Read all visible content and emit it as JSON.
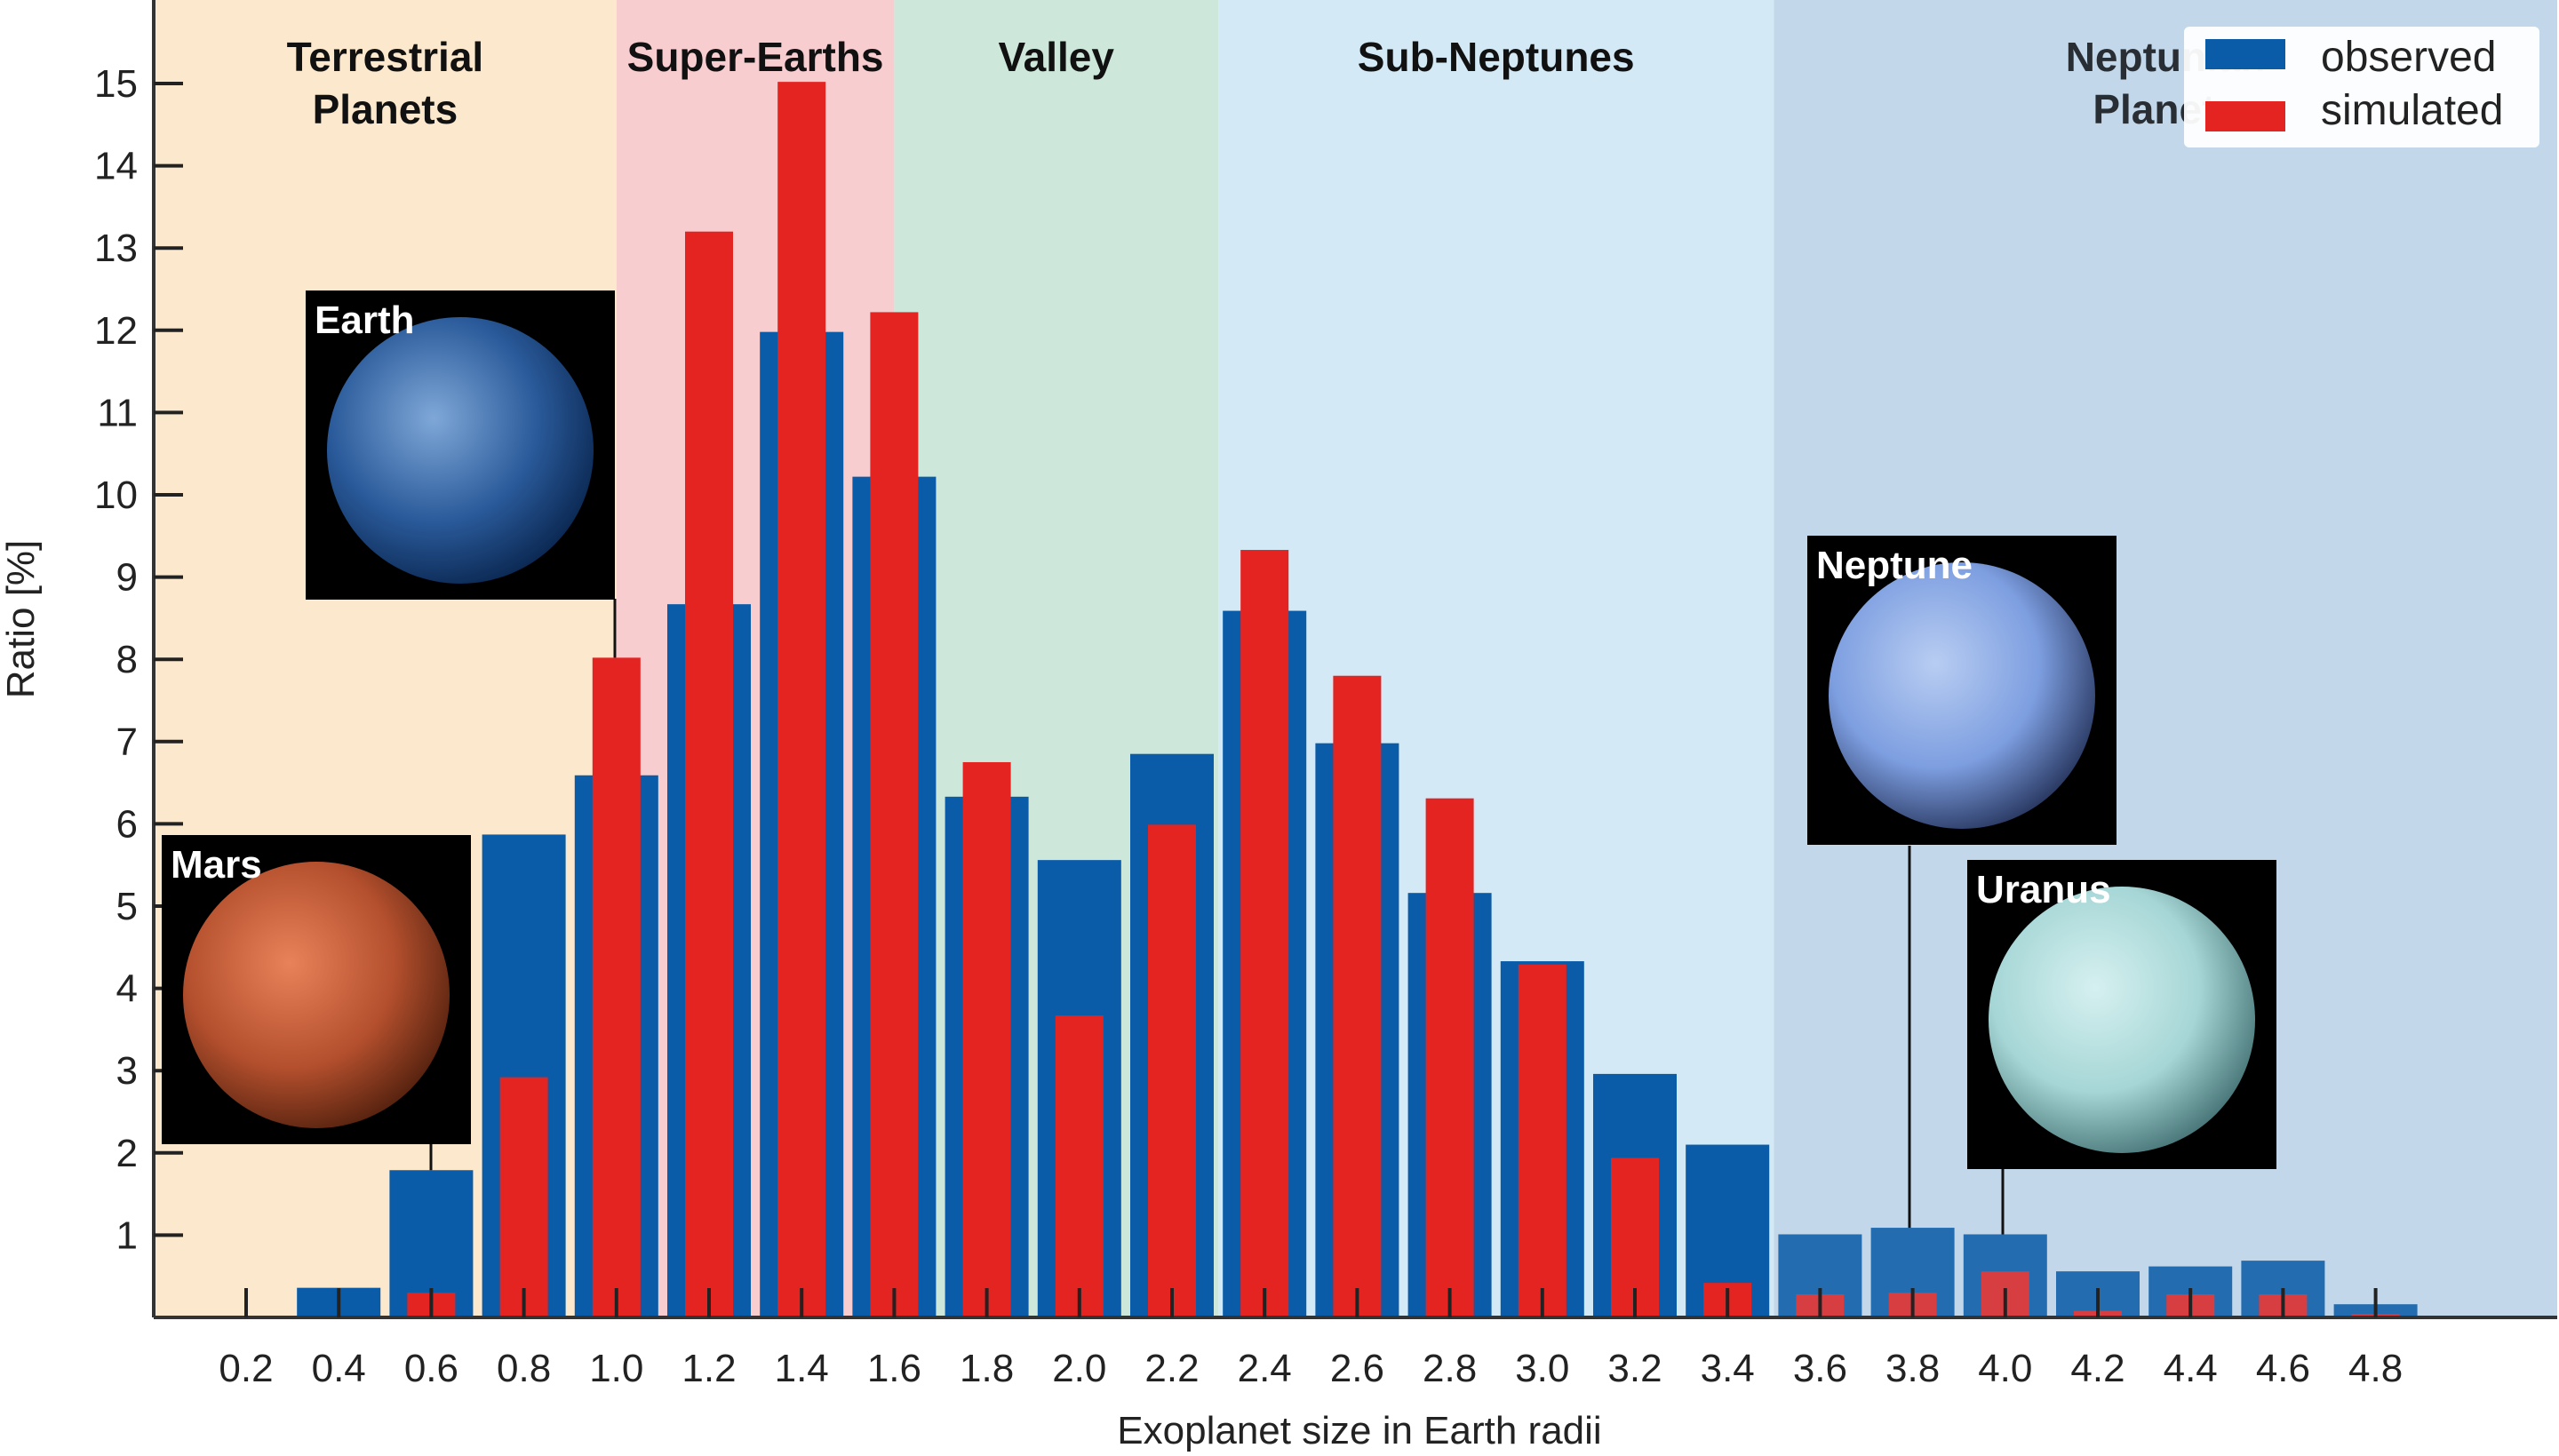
{
  "chart_data": {
    "type": "bar",
    "title": "",
    "xlabel": "Exoplanet size in Earth radii",
    "ylabel": "Ratio [%]",
    "xlim": [
      0.0,
      5.2
    ],
    "ylim": [
      0,
      16
    ],
    "yticks": [
      1,
      2,
      3,
      4,
      5,
      6,
      7,
      8,
      9,
      10,
      11,
      12,
      13,
      14,
      15
    ],
    "grid": false,
    "legend_position": "top-right",
    "categories": [
      "0.2",
      "0.4",
      "0.6",
      "0.8",
      "1.0",
      "1.2",
      "1.4",
      "1.6",
      "1.8",
      "2.0",
      "2.2",
      "2.4",
      "2.6",
      "2.8",
      "3.0",
      "3.2",
      "3.4",
      "3.6",
      "3.8",
      "4.0",
      "4.2",
      "4.4",
      "4.6",
      "4.8"
    ],
    "series": [
      {
        "name": "observed",
        "color": "#0a5ca8",
        "values": [
          0,
          0.36,
          1.79,
          5.87,
          6.59,
          8.67,
          11.98,
          10.22,
          6.33,
          5.56,
          6.85,
          8.59,
          6.98,
          5.16,
          4.33,
          2.96,
          2.1,
          1.01,
          1.09,
          1.01,
          0.56,
          0.62,
          0.69,
          0.16
        ]
      },
      {
        "name": "simulated",
        "color": "#e32421",
        "values": [
          0.02,
          0.02,
          0.3,
          2.92,
          8.02,
          13.2,
          15.02,
          12.22,
          6.75,
          3.67,
          5.99,
          9.33,
          7.8,
          6.31,
          4.29,
          1.94,
          0.42,
          0.28,
          0.3,
          0.56,
          0.08,
          0.28,
          0.28,
          0.04
        ]
      }
    ],
    "regions": [
      {
        "label": [
          "Terrestrial",
          "Planets"
        ],
        "from": 0.0,
        "to": 1.0,
        "color": "#fce8cc"
      },
      {
        "label": [
          "Super-Earths"
        ],
        "from": 1.0,
        "to": 1.6,
        "color": "#f8cdd0"
      },
      {
        "label": [
          "Valley"
        ],
        "from": 1.6,
        "to": 2.3,
        "color": "#cde8da"
      },
      {
        "label": [
          "Sub-Neptunes"
        ],
        "from": 2.3,
        "to": 3.5,
        "color": "#d3e9f5"
      },
      {
        "label": [
          "Neptunian",
          "Planets"
        ],
        "from": 3.5,
        "to": 5.2,
        "color": "#cbe0ee"
      }
    ],
    "annotations": [
      {
        "label": "Earth",
        "points_to": "1.0",
        "colors": [
          "#7fa8d8",
          "#2a5a9a",
          "#0c2a55"
        ]
      },
      {
        "label": "Mars",
        "points_to": "0.6",
        "colors": [
          "#e8825a",
          "#b5502e",
          "#5a2410"
        ]
      },
      {
        "label": "Neptune",
        "points_to": "3.8",
        "colors": [
          "#b8cdf2",
          "#7d9ee0",
          "#2c3c66"
        ]
      },
      {
        "label": "Uranus",
        "points_to": "4.0",
        "colors": [
          "#d6f0f0",
          "#a6d6d6",
          "#4c7a7c"
        ]
      }
    ]
  }
}
